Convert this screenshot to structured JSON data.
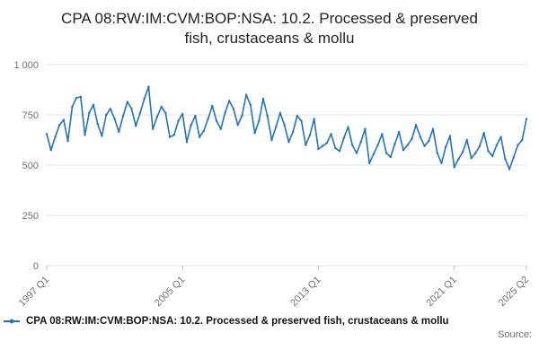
{
  "title": {
    "text": "CPA 08:RW:IM:CVM:BOP:NSA: 10.2. Processed & preserved fish, crustaceans & mollu"
  },
  "legend": {
    "label": "CPA 08:RW:IM:CVM:BOP:NSA: 10.2. Processed & preserved fish, crustaceans & mollu"
  },
  "source": {
    "label": "Source:"
  },
  "chart_data": {
    "type": "line",
    "title": "CPA 08:RW:IM:CVM:BOP:NSA: 10.2. Processed & preserved fish, crustaceans & mollu",
    "frequency": "quarterly",
    "start_period": "1997 Q1",
    "end_period": "2025 Q2",
    "xlabel": "",
    "ylabel": "",
    "ylim": [
      0,
      1000
    ],
    "y_ticks": [
      0,
      250,
      500,
      750,
      1000
    ],
    "y_tick_labels": [
      "0",
      "250",
      "500",
      "750",
      "1 000"
    ],
    "x_tick_labels": [
      "1997 Q1",
      "2005 Q1",
      "2013 Q1",
      "2021 Q1",
      "2025 Q2"
    ],
    "x_tick_positions": [
      0,
      32,
      64,
      96,
      113
    ],
    "grid": true,
    "legend_position": "bottom-left",
    "line_color": "#2073bc",
    "gridline_color": "#e0e0e0",
    "axis_label_color": "#707070",
    "series": [
      {
        "name": "CPA 08:RW:IM:CVM:BOP:NSA: 10.2. Processed & preserved fish, crustaceans & mollu",
        "values": [
          655,
          575,
          640,
          700,
          725,
          620,
          790,
          835,
          840,
          650,
          760,
          800,
          705,
          645,
          750,
          780,
          730,
          665,
          745,
          815,
          780,
          695,
          760,
          830,
          890,
          680,
          740,
          790,
          760,
          640,
          650,
          720,
          755,
          615,
          700,
          745,
          640,
          670,
          730,
          795,
          720,
          680,
          760,
          820,
          780,
          700,
          745,
          850,
          800,
          660,
          720,
          830,
          745,
          625,
          690,
          760,
          700,
          615,
          665,
          745,
          720,
          600,
          650,
          730,
          580,
          595,
          610,
          655,
          585,
          570,
          635,
          690,
          600,
          560,
          615,
          680,
          510,
          555,
          600,
          655,
          560,
          540,
          605,
          665,
          575,
          600,
          630,
          700,
          640,
          595,
          620,
          680,
          560,
          510,
          590,
          645,
          490,
          530,
          565,
          625,
          535,
          560,
          595,
          660,
          570,
          545,
          600,
          640,
          530,
          480,
          540,
          600,
          625,
          730
        ]
      }
    ]
  }
}
